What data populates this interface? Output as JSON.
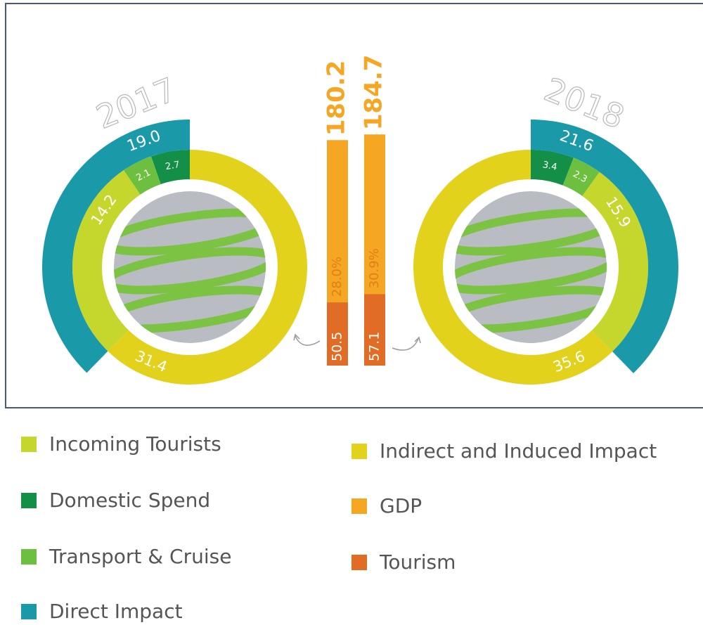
{
  "chart_data": [
    {
      "type": "donut",
      "title": "2017",
      "direction": "counterclockwise",
      "inner": {
        "values": [
          2.7,
          2.1,
          14.2,
          31.4
        ],
        "colors": [
          "#138f47",
          "#6cbf3f",
          "#c5d62c",
          "#e2d21b"
        ]
      },
      "outer": {
        "values": [
          19.0
        ],
        "value_labels": [
          "19.0"
        ],
        "color": "#1a9aa8"
      }
    },
    {
      "type": "donut",
      "title": "2018",
      "direction": "clockwise",
      "inner": {
        "values": [
          3.4,
          2.3,
          15.9,
          35.6
        ],
        "colors": [
          "#138f47",
          "#6cbf3f",
          "#c5d62c",
          "#e2d21b"
        ]
      },
      "outer": {
        "values": [
          21.6
        ],
        "color": "#1a9aa8"
      }
    },
    {
      "type": "bar",
      "series": [
        {
          "color": "#f5a623",
          "values": [
            180.2,
            184.7
          ]
        },
        {
          "color": "#e06c25",
          "values": [
            50.5,
            57.1
          ]
        }
      ],
      "share": {
        "values": [
          28.0,
          30.9
        ],
        "value_labels": [
          "28.0%",
          "30.9%"
        ]
      }
    }
  ],
  "legend": [
    {
      "name": "Incoming Tourists",
      "color": "#c5d62c"
    },
    {
      "name": "Domestic Spend",
      "color": "#138f47"
    },
    {
      "name": "Transport & Cruise",
      "color": "#6cbf3f"
    },
    {
      "name": "Direct Impact",
      "color": "#1a9aa8"
    },
    {
      "name": "Indirect and Induced Impact",
      "color": "#e2d21b"
    },
    {
      "name": "GDP",
      "color": "#f5a623"
    },
    {
      "name": "Tourism",
      "color": "#e06c25"
    }
  ]
}
